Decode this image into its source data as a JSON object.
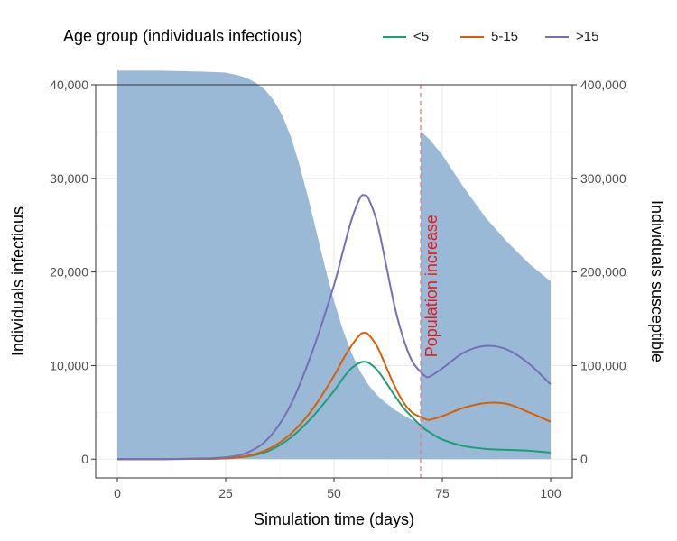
{
  "legend": {
    "title": "Age group (individuals infectious)",
    "items": [
      {
        "label": "<5",
        "color": "#1b9e77"
      },
      {
        "label": "5-15",
        "color": "#d95f02"
      },
      {
        "label": ">15",
        "color": "#7570b3"
      }
    ]
  },
  "chart_data": {
    "type": "line",
    "xlabel": "Simulation time (days)",
    "ylabel": "Individuals infectious",
    "ylabel_right": "Individuals susceptible",
    "xlim": [
      -5,
      105
    ],
    "ylim": [
      -2000,
      40000
    ],
    "ylim_right": [
      -20000,
      400000
    ],
    "x_ticks": [
      0,
      25,
      50,
      75,
      100
    ],
    "x_tick_labels": [
      "0",
      "25",
      "50",
      "75",
      "100"
    ],
    "y_ticks": [
      0,
      10000,
      20000,
      30000,
      40000
    ],
    "y_tick_labels": [
      "0",
      "10,000",
      "20,000",
      "30,000",
      "40,000"
    ],
    "y_right_ticks": [
      0,
      100000,
      200000,
      300000,
      400000
    ],
    "y_right_tick_labels": [
      "0",
      "100,000",
      "200,000",
      "300,000",
      "400,000"
    ],
    "grid": true,
    "annotation": {
      "x": 70,
      "text": "Population increase",
      "color": "#e41a1c"
    },
    "susceptible_area": {
      "color": "#9ab9d6",
      "x": [
        0,
        10,
        20,
        25,
        28,
        30,
        32,
        34,
        36,
        38,
        40,
        42,
        44,
        46,
        48,
        50,
        52,
        54,
        56,
        58,
        60,
        62,
        64,
        66,
        68,
        70,
        70,
        72,
        75,
        80,
        85,
        90,
        95,
        100
      ],
      "y": [
        415000,
        415000,
        414000,
        413000,
        410000,
        407000,
        402000,
        395000,
        384000,
        368000,
        345000,
        315000,
        280000,
        242000,
        204000,
        169000,
        139000,
        114000,
        94000,
        79000,
        68000,
        60000,
        53000,
        47000,
        42000,
        38000,
        350000,
        342000,
        325000,
        290000,
        258000,
        232000,
        209000,
        190000
      ]
    },
    "x": [
      0,
      10,
      20,
      25,
      30,
      35,
      40,
      45,
      50,
      52,
      54,
      56,
      57,
      58,
      60,
      62,
      64,
      66,
      68,
      70,
      71,
      72,
      75,
      80,
      85,
      90,
      95,
      100
    ],
    "series": [
      {
        "name": "<5",
        "color": "#1b9e77",
        "values": [
          0,
          0,
          30,
          80,
          300,
          900,
          2300,
          4500,
          7300,
          8600,
          9700,
          10300,
          10400,
          10300,
          9500,
          8200,
          6800,
          5500,
          4500,
          3600,
          3200,
          2900,
          2100,
          1400,
          1100,
          1000,
          900,
          700
        ]
      },
      {
        "name": "5-15",
        "color": "#d95f02",
        "values": [
          0,
          0,
          40,
          100,
          350,
          1100,
          2700,
          5300,
          8900,
          10600,
          12100,
          13300,
          13500,
          13300,
          12000,
          9900,
          7800,
          6100,
          5000,
          4500,
          4300,
          4200,
          4600,
          5500,
          6000,
          5900,
          5000,
          4000
        ]
      },
      {
        "name": ">15",
        "color": "#7570b3",
        "values": [
          0,
          0,
          80,
          200,
          700,
          2300,
          5800,
          11500,
          18600,
          22100,
          25500,
          27900,
          28200,
          27800,
          25200,
          20800,
          16300,
          12900,
          10500,
          9300,
          8900,
          8800,
          9700,
          11400,
          12100,
          11700,
          10200,
          8000
        ]
      }
    ]
  }
}
